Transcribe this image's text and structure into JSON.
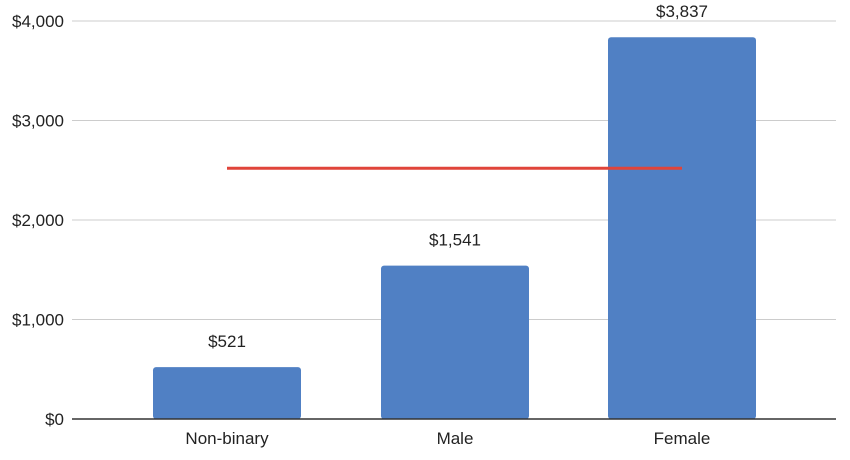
{
  "chart_data": {
    "type": "bar",
    "categories": [
      "Non-binary",
      "Male",
      "Female"
    ],
    "values": [
      521,
      1541,
      3837
    ],
    "data_labels": [
      "$521",
      "$1,541",
      "$3,837"
    ],
    "title": "",
    "xlabel": "",
    "ylabel": "",
    "ylim": [
      0,
      4000
    ],
    "y_ticks": [
      0,
      1000,
      2000,
      3000,
      4000
    ],
    "y_tick_labels": [
      "$0",
      "$1,000",
      "$2,000",
      "$3,000",
      "$4,000"
    ],
    "grid": true,
    "legend": "none",
    "reference_line": {
      "value": 2520,
      "from_category": "Non-binary",
      "to_category": "Female",
      "color": "#e0443a"
    },
    "colors": {
      "bar": "#5080c4",
      "grid": "#cccccc",
      "axis": "#333333",
      "text": "#222222"
    }
  }
}
